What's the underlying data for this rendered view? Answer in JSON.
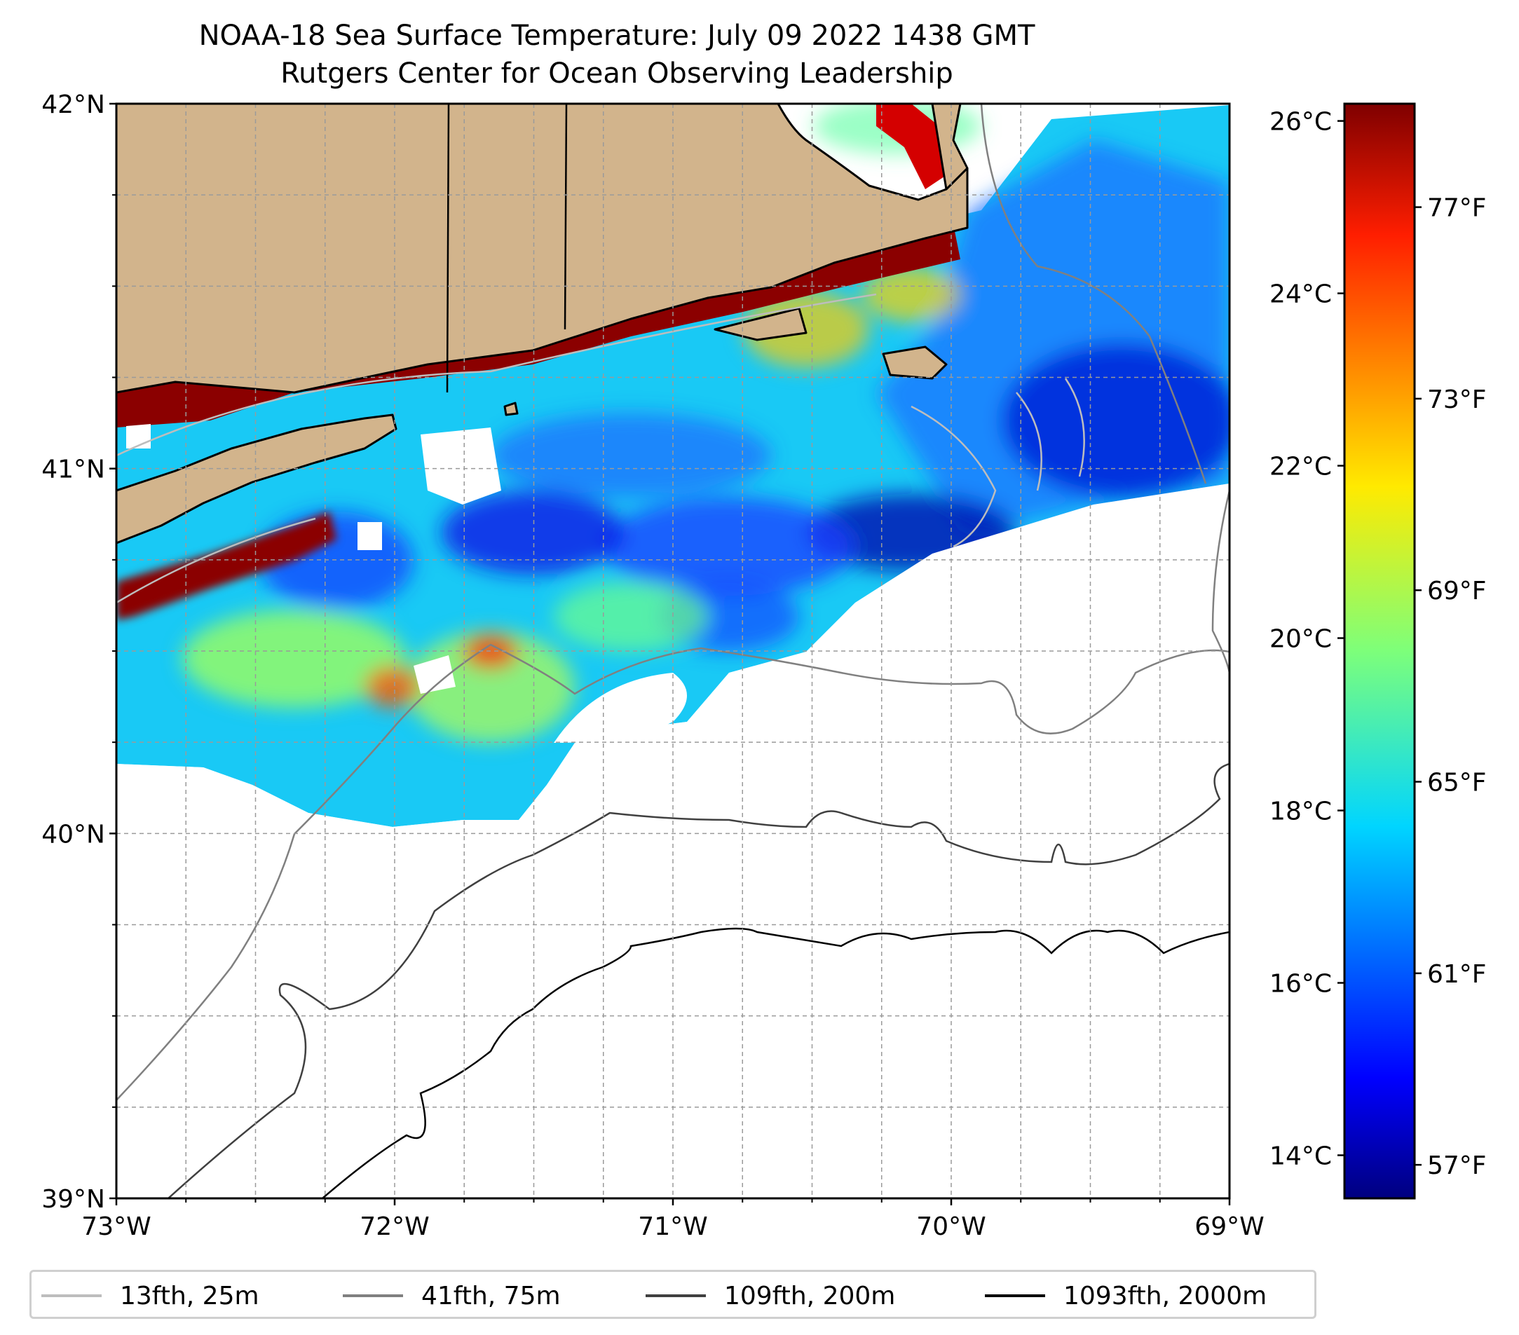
{
  "title": {
    "line1": "NOAA-18 Sea Surface Temperature: July 09 2022 1438 GMT",
    "line2": "Rutgers Center for Ocean Observing Leadership"
  },
  "map": {
    "lon_range": [
      -73,
      -69
    ],
    "lat_range": [
      39,
      42
    ],
    "land_color": "#d2b48c",
    "no_data_color": "#ffffff",
    "lon_ticks": [
      {
        "value": -73,
        "label": "73°W"
      },
      {
        "value": -72,
        "label": "72°W"
      },
      {
        "value": -71,
        "label": "71°W"
      },
      {
        "value": -70,
        "label": "70°W"
      },
      {
        "value": -69,
        "label": "69°W"
      }
    ],
    "lat_ticks": [
      {
        "value": 42,
        "label": "42°N"
      },
      {
        "value": 41,
        "label": "41°N"
      },
      {
        "value": 40,
        "label": "40°N"
      },
      {
        "value": 39,
        "label": "39°N"
      }
    ],
    "gridlines": true
  },
  "colorbar": {
    "colormap": "jet",
    "celsius_range": [
      13.5,
      26.2
    ],
    "celsius_ticks": [
      {
        "value": 26,
        "label": "26°C"
      },
      {
        "value": 24,
        "label": "24°C"
      },
      {
        "value": 22,
        "label": "22°C"
      },
      {
        "value": 20,
        "label": "20°C"
      },
      {
        "value": 18,
        "label": "18°C"
      },
      {
        "value": 16,
        "label": "16°C"
      },
      {
        "value": 14,
        "label": "14°C"
      }
    ],
    "fahrenheit_ticks": [
      {
        "value": 77,
        "label": "77°F"
      },
      {
        "value": 73,
        "label": "73°F"
      },
      {
        "value": 69,
        "label": "69°F"
      },
      {
        "value": 65,
        "label": "65°F"
      },
      {
        "value": 61,
        "label": "61°F"
      },
      {
        "value": 57,
        "label": "57°F"
      }
    ]
  },
  "legend": {
    "items": [
      {
        "label": "13fth, 25m",
        "color": "#bdbdbd"
      },
      {
        "label": "41fth, 75m",
        "color": "#808080"
      },
      {
        "label": "109fth, 200m",
        "color": "#404040"
      },
      {
        "label": "1093fth, 2000m",
        "color": "#000000"
      }
    ]
  }
}
